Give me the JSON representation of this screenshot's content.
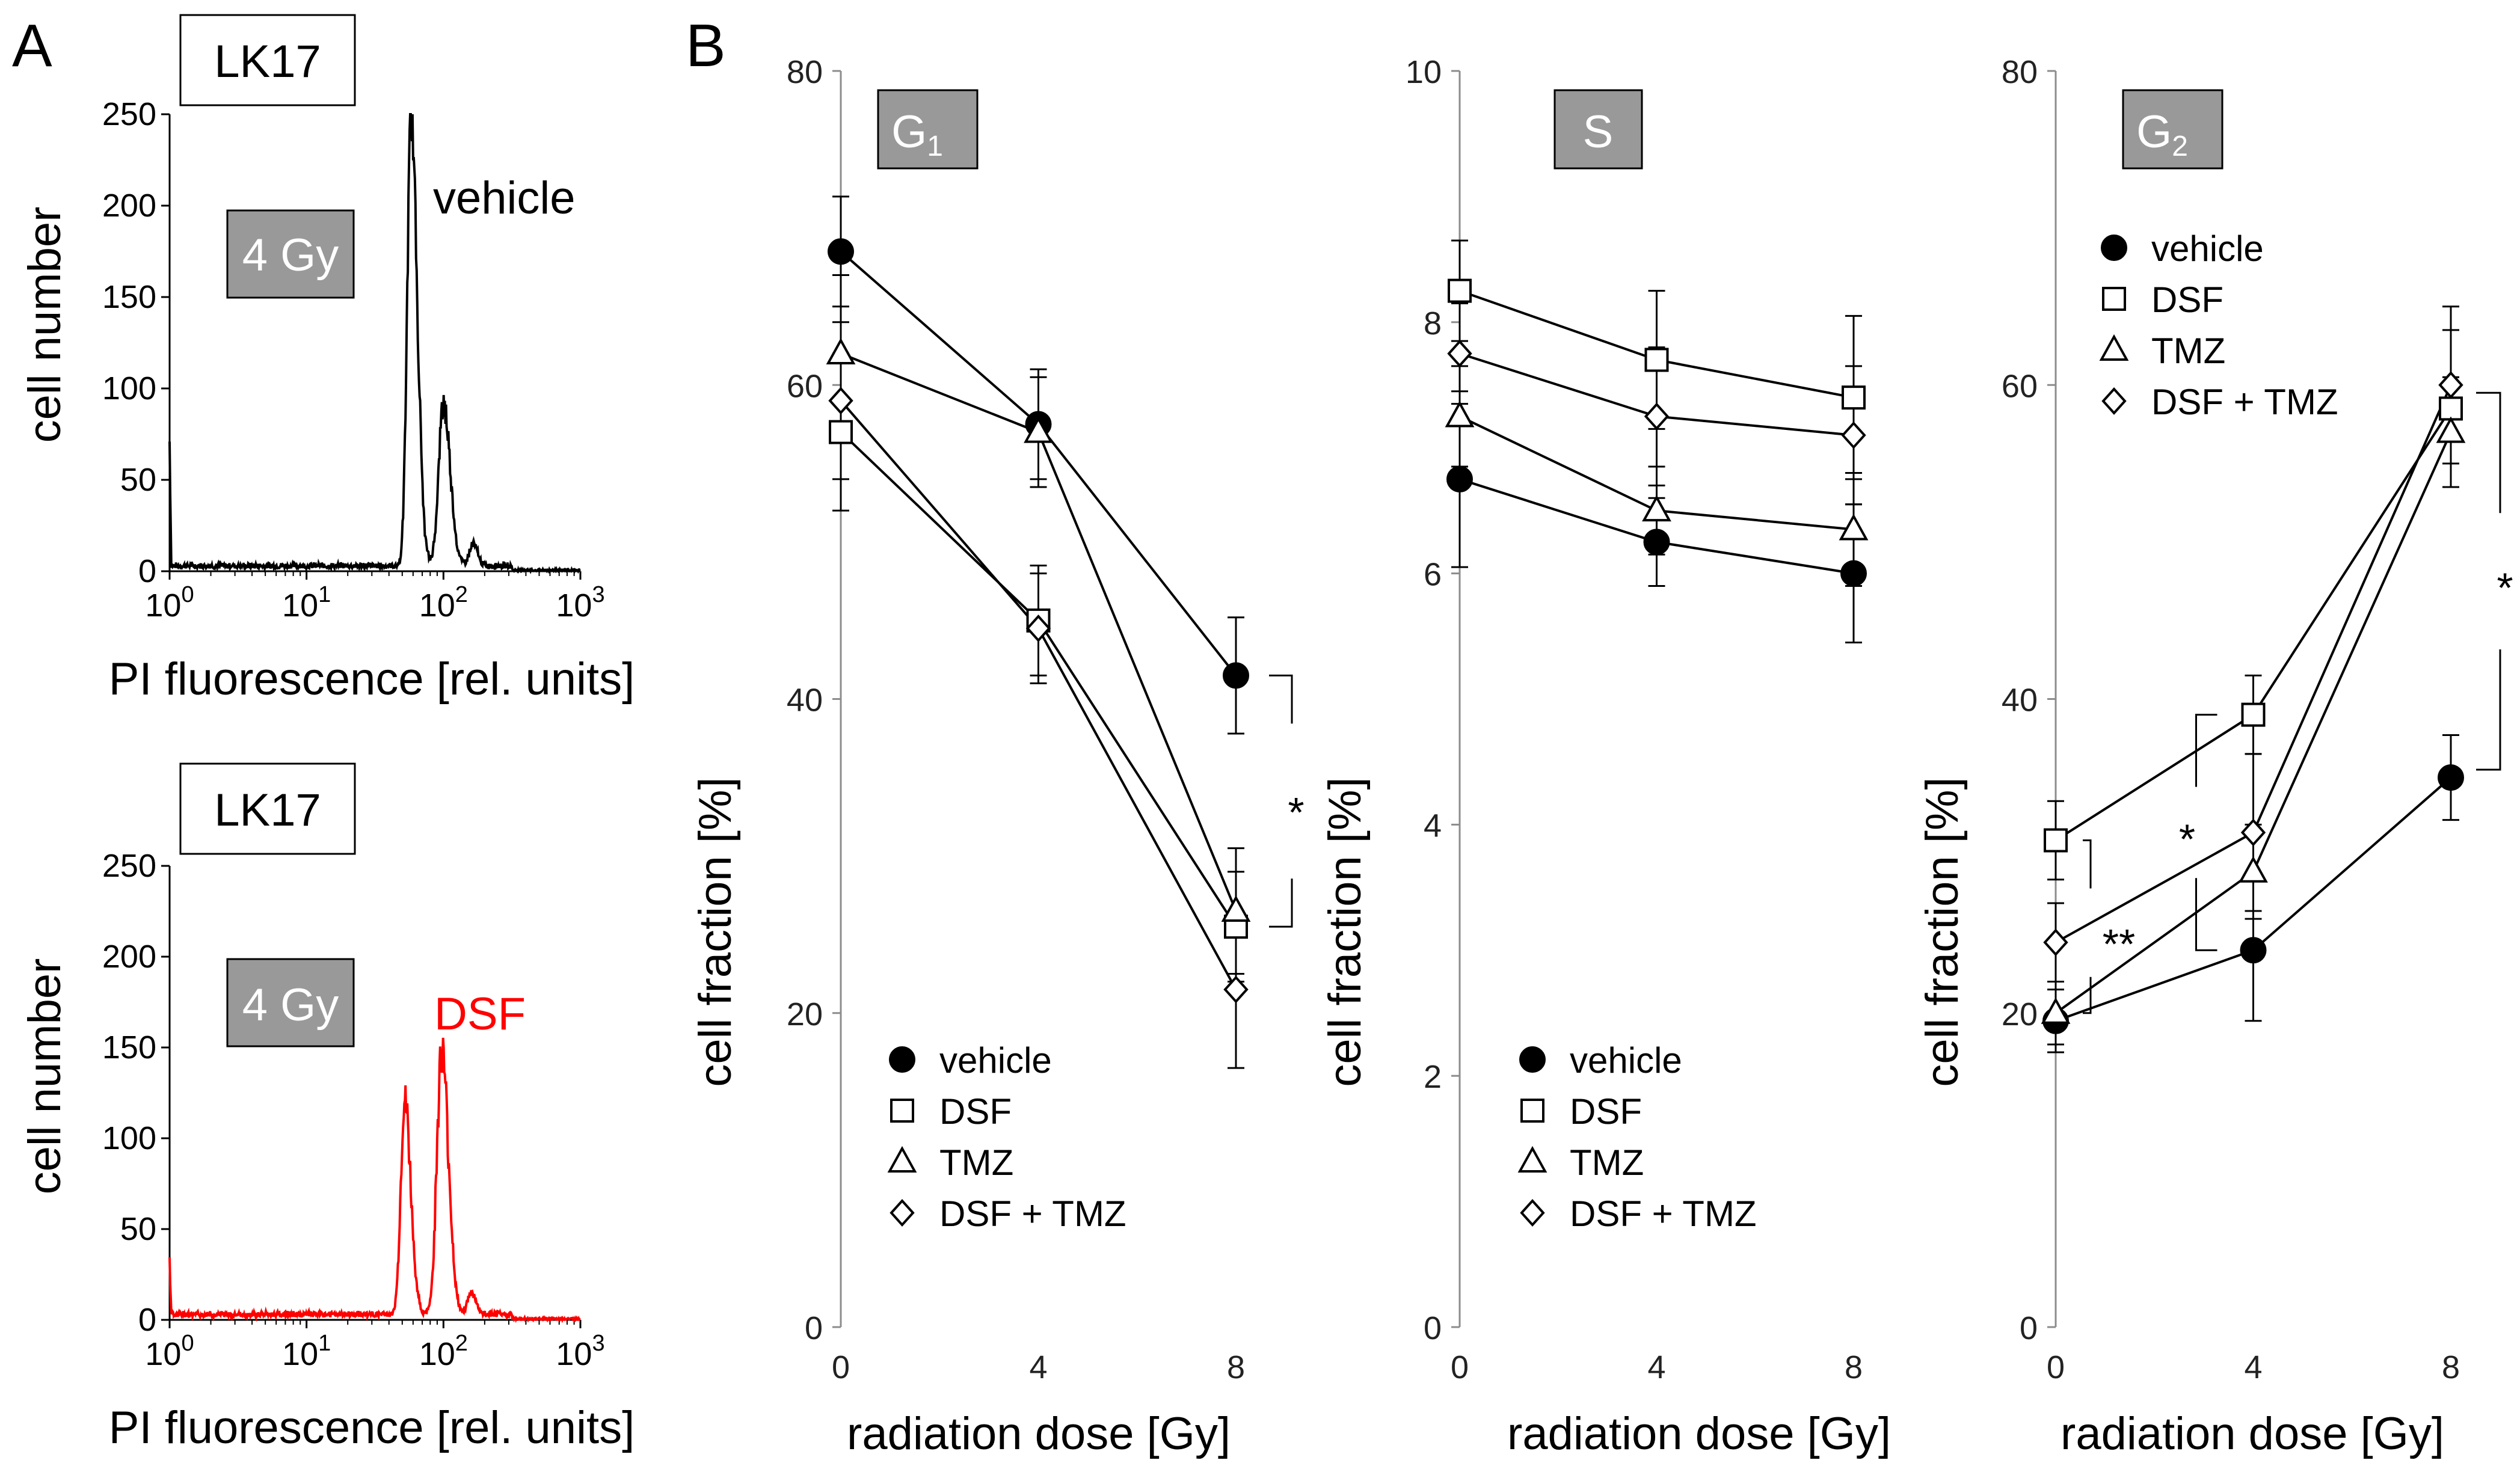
{
  "panel_labels": {
    "a": "A",
    "b": "B"
  },
  "chart_data": [
    {
      "type": "line",
      "panel": "A",
      "subtype": "histogram",
      "title": "LK17",
      "dose_label": "4 Gy",
      "series_label": "vehicle",
      "series_color": "#000000",
      "xlabel": "PI fluorescence [rel. units]",
      "ylabel": "cell number",
      "xscale": "log",
      "xlim": [
        1,
        1000
      ],
      "ylim": [
        0,
        250
      ],
      "x_ticks": [
        {
          "base": "10",
          "exp": "0"
        },
        {
          "base": "10",
          "exp": "1"
        },
        {
          "base": "10",
          "exp": "2"
        },
        {
          "base": "10",
          "exp": "3"
        }
      ],
      "y_ticks": [
        "0",
        "50",
        "100",
        "150",
        "200",
        "250"
      ],
      "peaks": [
        {
          "x": 1.0,
          "y": 70
        },
        {
          "x": 58,
          "y": 250
        },
        {
          "x": 100,
          "y": 93
        }
      ]
    },
    {
      "type": "line",
      "panel": "A",
      "subtype": "histogram",
      "title": "LK17",
      "dose_label": "4 Gy",
      "series_label": "DSF",
      "series_color": "#ff0000",
      "xlabel": "PI fluorescence [rel. units]",
      "ylabel": "cell number",
      "xscale": "log",
      "xlim": [
        1,
        1000
      ],
      "ylim": [
        0,
        250
      ],
      "x_ticks": [
        {
          "base": "10",
          "exp": "0"
        },
        {
          "base": "10",
          "exp": "1"
        },
        {
          "base": "10",
          "exp": "2"
        },
        {
          "base": "10",
          "exp": "3"
        }
      ],
      "y_ticks": [
        "0",
        "50",
        "100",
        "150",
        "200",
        "250"
      ],
      "peaks": [
        {
          "x": 1.0,
          "y": 32
        },
        {
          "x": 52,
          "y": 123
        },
        {
          "x": 97,
          "y": 150
        }
      ]
    },
    {
      "type": "line",
      "panel": "B",
      "title": "G",
      "title_sub": "1",
      "xlabel": "radiation dose [Gy]",
      "ylabel": "cell fraction [%]",
      "x": [
        0,
        4,
        8
      ],
      "x_ticks": [
        "0",
        "4",
        "8"
      ],
      "ylim": [
        0,
        80
      ],
      "y_ticks": [
        "0",
        "20",
        "40",
        "60",
        "80"
      ],
      "series": [
        {
          "name": "vehicle",
          "marker": "circle",
          "values": [
            68.5,
            57.5,
            41.5
          ],
          "err": [
            3.5,
            3.5,
            3.7
          ]
        },
        {
          "name": "DSF",
          "marker": "square",
          "values": [
            57.0,
            45.0,
            25.5
          ],
          "err": [
            5.0,
            3.5,
            3.5
          ]
        },
        {
          "name": "TMZ",
          "marker": "triangle",
          "values": [
            62.0,
            57.0,
            26.5
          ],
          "err": [
            5.0,
            3.5,
            4.0
          ]
        },
        {
          "name": "DSF + TMZ",
          "marker": "diamond",
          "values": [
            59.0,
            44.5,
            21.5
          ],
          "err": [
            5.0,
            3.5,
            5.0
          ]
        }
      ],
      "annotations": [
        {
          "text": "*"
        }
      ]
    },
    {
      "type": "line",
      "panel": "B",
      "title": "S",
      "title_sub": "",
      "xlabel": "radiation dose [Gy]",
      "ylabel": "cell fraction [%]",
      "x": [
        0,
        4,
        8
      ],
      "x_ticks": [
        "0",
        "4",
        "8"
      ],
      "ylim": [
        0,
        10
      ],
      "y_ticks": [
        "0",
        "2",
        "4",
        "6",
        "8",
        "10"
      ],
      "series": [
        {
          "name": "vehicle",
          "marker": "circle",
          "values": [
            6.75,
            6.25,
            6.0
          ],
          "err": [
            0.7,
            0.35,
            0.55
          ]
        },
        {
          "name": "DSF",
          "marker": "square",
          "values": [
            8.25,
            7.7,
            7.4
          ],
          "err": [
            0.4,
            0.55,
            0.65
          ]
        },
        {
          "name": "TMZ",
          "marker": "triangle",
          "values": [
            7.25,
            6.5,
            6.35
          ],
          "err": [
            0.4,
            0.35,
            0.45
          ]
        },
        {
          "name": "DSF + TMZ",
          "marker": "diamond",
          "values": [
            7.75,
            7.25,
            7.1
          ],
          "err": [
            0.4,
            0.55,
            0.55
          ]
        }
      ],
      "annotations": []
    },
    {
      "type": "line",
      "panel": "B",
      "title": "G",
      "title_sub": "2",
      "xlabel": "radiation dose [Gy]",
      "ylabel": "cell fraction [%]",
      "x": [
        0,
        4,
        8
      ],
      "x_ticks": [
        "0",
        "4",
        "8"
      ],
      "ylim": [
        0,
        80
      ],
      "y_ticks": [
        "0",
        "20",
        "40",
        "60",
        "80"
      ],
      "series": [
        {
          "name": "vehicle",
          "marker": "circle",
          "values": [
            19.5,
            24.0,
            35.0
          ],
          "err": [
            2.0,
            4.5,
            2.7
          ]
        },
        {
          "name": "DSF",
          "marker": "square",
          "values": [
            31.0,
            39.0,
            58.5
          ],
          "err": [
            2.5,
            2.5,
            5.0
          ]
        },
        {
          "name": "TMZ",
          "marker": "triangle",
          "values": [
            20.0,
            29.0,
            57.0
          ],
          "err": [
            2.0,
            3.0,
            3.5
          ]
        },
        {
          "name": "DSF + TMZ",
          "marker": "diamond",
          "values": [
            24.5,
            31.5,
            60.0
          ],
          "err": [
            2.5,
            5.0,
            5.0
          ]
        }
      ],
      "annotations": [
        {
          "text": "*"
        },
        {
          "text": "*"
        },
        {
          "text": "**"
        }
      ]
    }
  ]
}
